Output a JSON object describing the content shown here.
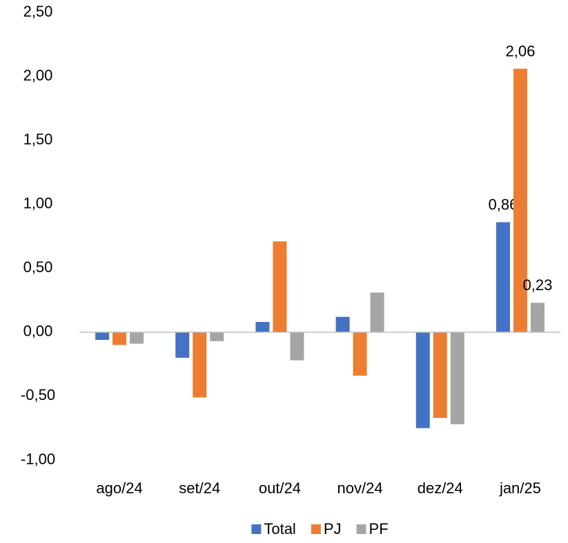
{
  "chart_data": {
    "type": "bar",
    "categories": [
      "ago/24",
      "set/24",
      "out/24",
      "nov/24",
      "dez/24",
      "jan/25"
    ],
    "series": [
      {
        "name": "Total",
        "color": "#4472c4",
        "values": [
          -0.06,
          -0.2,
          0.08,
          0.12,
          -0.75,
          0.86
        ],
        "value_labels": [
          null,
          null,
          null,
          null,
          null,
          "0,86"
        ]
      },
      {
        "name": "PJ",
        "color": "#ed7d31",
        "values": [
          -0.1,
          -0.51,
          0.71,
          -0.34,
          -0.67,
          2.06
        ],
        "value_labels": [
          null,
          null,
          null,
          null,
          null,
          "2,06"
        ]
      },
      {
        "name": "PF",
        "color": "#a5a5a5",
        "values": [
          -0.09,
          -0.07,
          -0.22,
          0.31,
          -0.72,
          0.23
        ],
        "value_labels": [
          null,
          null,
          null,
          null,
          null,
          "0,23"
        ]
      }
    ],
    "ylim": [
      -1.0,
      2.5
    ],
    "yticks": [
      {
        "value": -1.0,
        "label": "-1,00"
      },
      {
        "value": -0.5,
        "label": "-0,50"
      },
      {
        "value": 0,
        "label": "0,00"
      },
      {
        "value": 0.5,
        "label": "0,50"
      },
      {
        "value": 1.0,
        "label": "1,00"
      },
      {
        "value": 1.5,
        "label": "1,50"
      },
      {
        "value": 2.0,
        "label": "2,00"
      },
      {
        "value": 2.5,
        "label": "2,50"
      }
    ],
    "grid": false,
    "legend": "bottom"
  }
}
